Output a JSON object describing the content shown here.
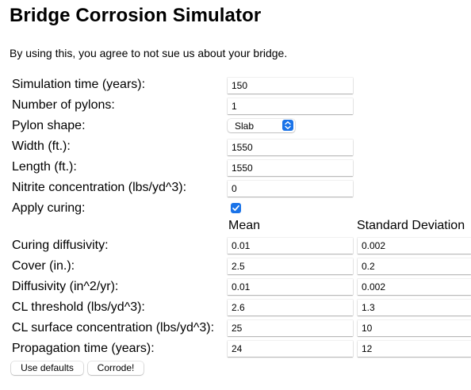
{
  "page": {
    "title": "Bridge Corrosion Simulator",
    "disclaimer": "By using this, you agree to not sue us about your bridge."
  },
  "fields": {
    "sim_time": {
      "label": "Simulation time (years):",
      "value": "150"
    },
    "pylons": {
      "label": "Number of pylons:",
      "value": "1"
    },
    "pylon_shape": {
      "label": "Pylon shape:",
      "value": "Slab",
      "icon": "chevron-updown-icon"
    },
    "width": {
      "label": "Width (ft.):",
      "value": "1550"
    },
    "length": {
      "label": "Length (ft.):",
      "value": "1550"
    },
    "nitrite": {
      "label": "Nitrite concentration (lbs/yd^3):",
      "value": "0"
    },
    "curing": {
      "label": "Apply curing:",
      "checked": true,
      "icon": "checkmark-icon"
    }
  },
  "stats_headers": {
    "mean": "Mean",
    "std": "Standard Deviation"
  },
  "stats": {
    "curing_diffusivity": {
      "label": "Curing diffusivity:",
      "mean": "0.01",
      "std": "0.002"
    },
    "cover": {
      "label": "Cover (in.):",
      "mean": "2.5",
      "std": "0.2"
    },
    "diffusivity": {
      "label": "Diffusivity (in^2/yr):",
      "mean": "0.01",
      "std": "0.002"
    },
    "cl_threshold": {
      "label": "CL threshold (lbs/yd^3):",
      "mean": "2.6",
      "std": "1.3"
    },
    "cl_surface": {
      "label": "CL surface concentration (lbs/yd^3):",
      "mean": "25",
      "std": "10"
    },
    "propagation": {
      "label": "Propagation time (years):",
      "mean": "24",
      "std": "12"
    }
  },
  "buttons": {
    "defaults": "Use defaults",
    "corrode": "Corrode!"
  },
  "colors": {
    "accent": "#1a73e8"
  }
}
